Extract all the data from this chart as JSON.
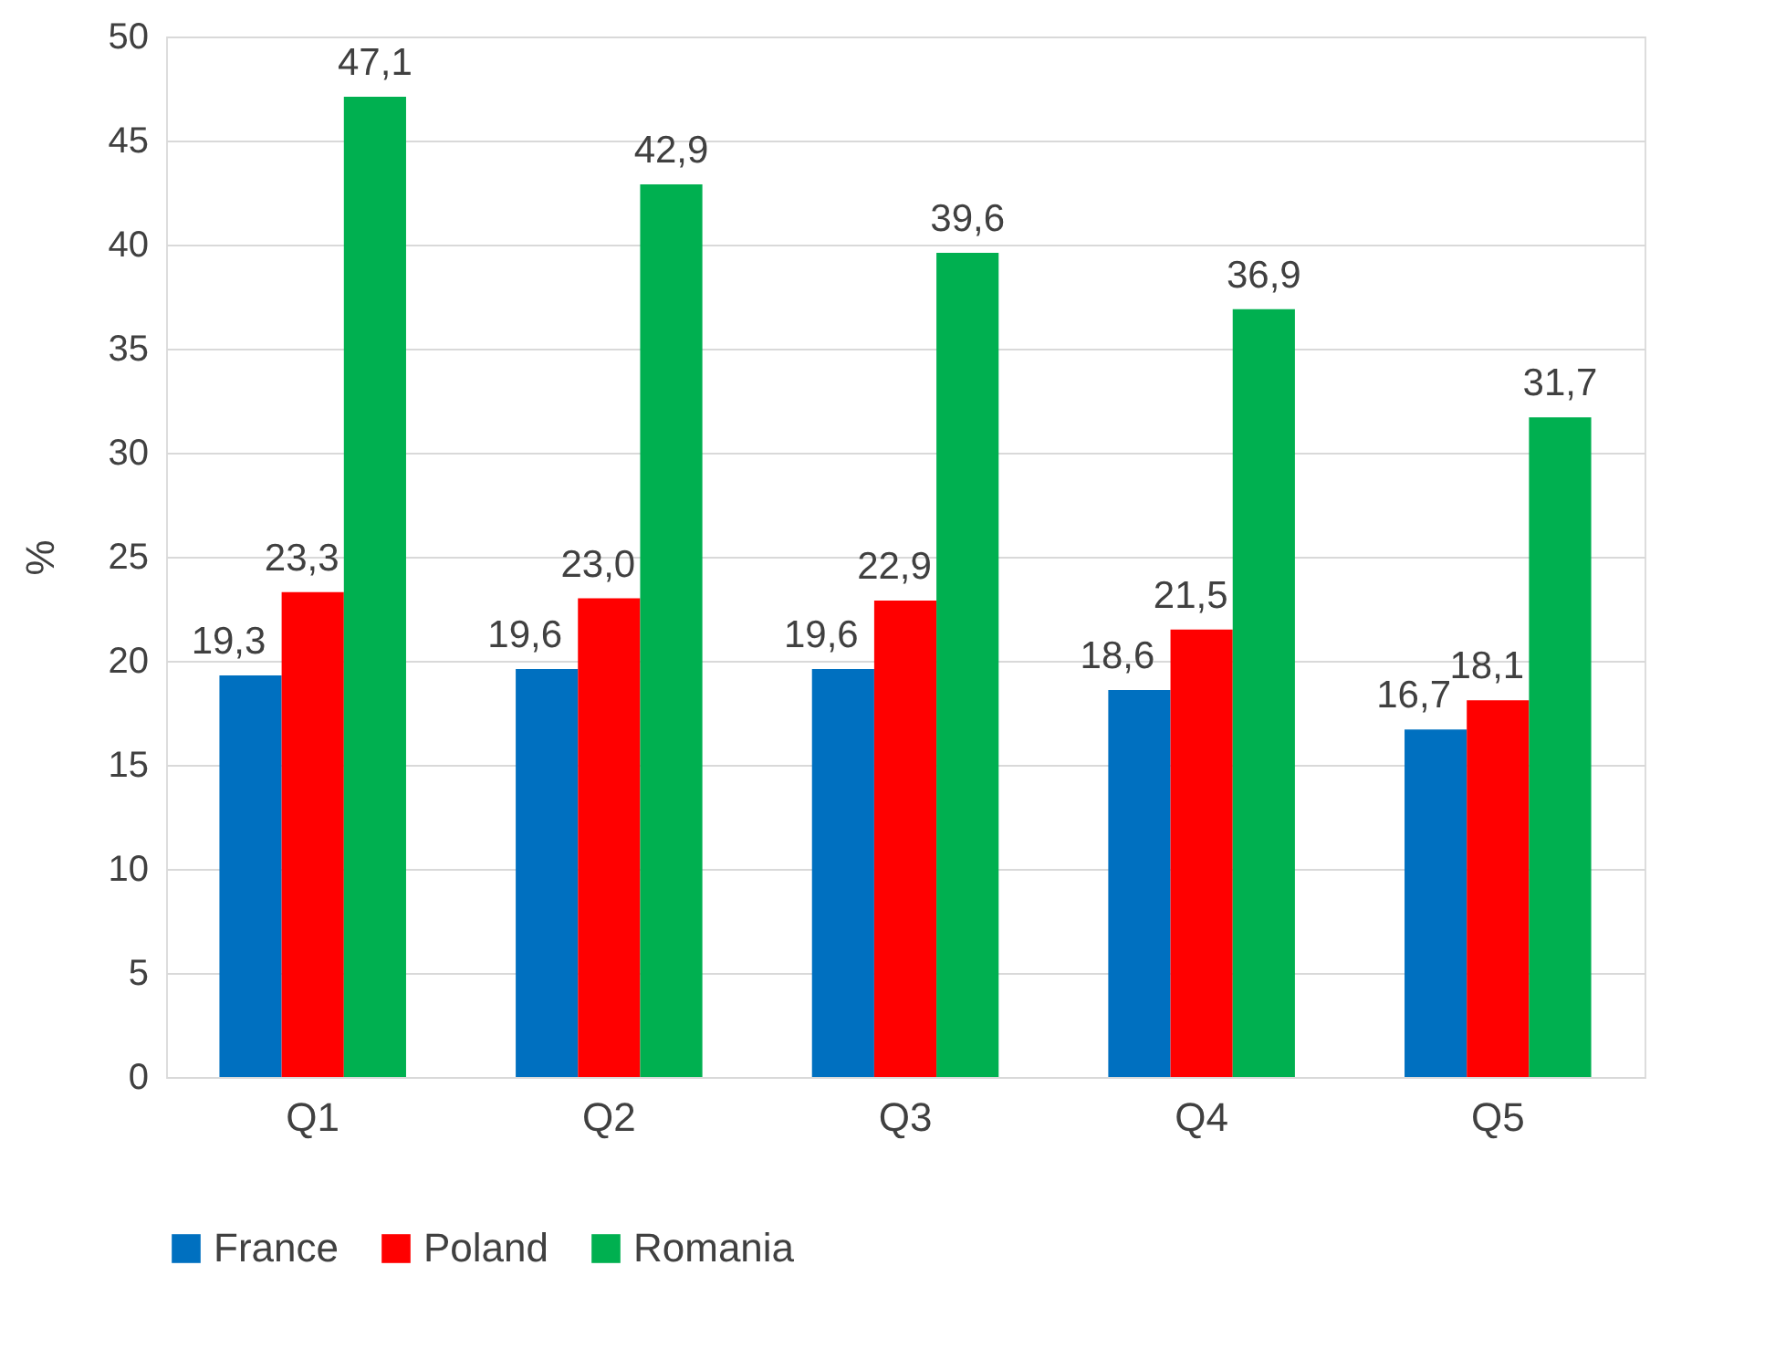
{
  "chart_data": {
    "type": "bar",
    "ylabel": "%",
    "categories": [
      "Q1",
      "Q2",
      "Q3",
      "Q4",
      "Q5"
    ],
    "series": [
      {
        "name": "France",
        "color": "#0070c0",
        "values": [
          19.3,
          19.6,
          19.6,
          18.6,
          16.7
        ],
        "value_labels": [
          "19,3",
          "19,6",
          "19,6",
          "18,6",
          "16,7"
        ]
      },
      {
        "name": "Poland",
        "color": "#ff0000",
        "values": [
          23.3,
          23.0,
          22.9,
          21.5,
          18.1
        ],
        "value_labels": [
          "23,3",
          "23,0",
          "22,9",
          "21,5",
          "18,1"
        ]
      },
      {
        "name": "Romania",
        "color": "#00b050",
        "values": [
          47.1,
          42.9,
          39.6,
          36.9,
          31.7
        ],
        "value_labels": [
          "47,1",
          "42,9",
          "39,6",
          "36,9",
          "31,7"
        ]
      }
    ],
    "ylim": [
      0,
      50
    ],
    "yticks": [
      0,
      5,
      10,
      15,
      20,
      25,
      30,
      35,
      40,
      45,
      50
    ],
    "grid": "y",
    "legend": "bottom"
  }
}
